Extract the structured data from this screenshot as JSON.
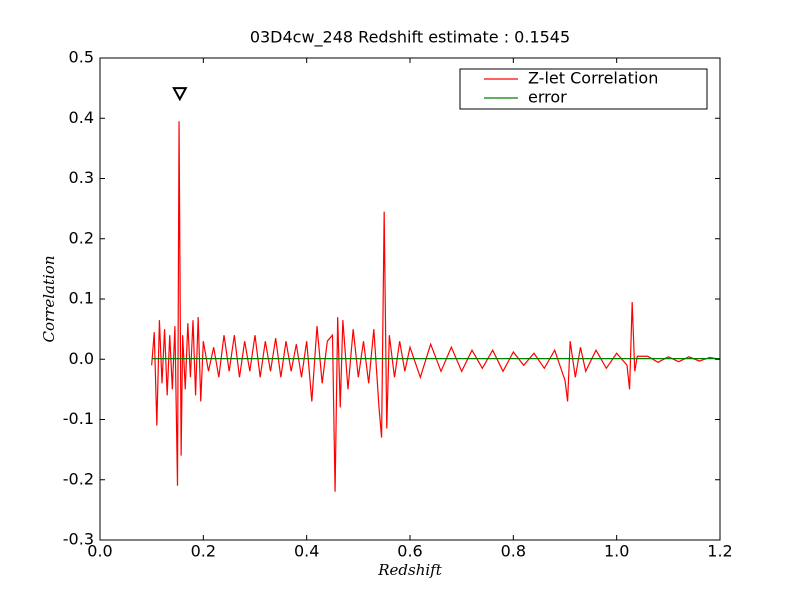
{
  "chart_data": {
    "type": "line",
    "title": "03D4cw_248 Redshift estimate : 0.1545",
    "xlabel": "Redshift",
    "ylabel": "Correlation",
    "xlim": [
      0,
      1.2
    ],
    "ylim": [
      -0.3,
      0.5
    ],
    "xticks": [
      {
        "value": 0,
        "label": "0.0"
      },
      0.2,
      0.4,
      0.6,
      0.8,
      {
        "value": 1,
        "label": "1.0"
      },
      1.2
    ],
    "yticks": [
      -0.3,
      -0.2,
      -0.1,
      {
        "value": 0,
        "label": "0.0"
      },
      0.1,
      0.2,
      0.3,
      0.4,
      0.5
    ],
    "legend": "upper right",
    "grid": false,
    "marker": {
      "x": 0.1545,
      "y": 0.44
    },
    "series": [
      {
        "name": "Z-let Correlation",
        "color": "#ff0000",
        "x": [
          0.1,
          0.105,
          0.11,
          0.115,
          0.12,
          0.125,
          0.13,
          0.135,
          0.14,
          0.145,
          0.15,
          0.153,
          0.157,
          0.16,
          0.165,
          0.17,
          0.175,
          0.18,
          0.185,
          0.19,
          0.195,
          0.2,
          0.21,
          0.22,
          0.23,
          0.24,
          0.25,
          0.26,
          0.27,
          0.28,
          0.29,
          0.3,
          0.31,
          0.32,
          0.33,
          0.34,
          0.35,
          0.36,
          0.37,
          0.38,
          0.39,
          0.4,
          0.41,
          0.42,
          0.43,
          0.44,
          0.45,
          0.455,
          0.46,
          0.465,
          0.47,
          0.48,
          0.49,
          0.5,
          0.51,
          0.52,
          0.53,
          0.54,
          0.545,
          0.55,
          0.555,
          0.56,
          0.57,
          0.58,
          0.59,
          0.6,
          0.62,
          0.64,
          0.66,
          0.68,
          0.7,
          0.72,
          0.74,
          0.76,
          0.78,
          0.8,
          0.82,
          0.84,
          0.86,
          0.88,
          0.9,
          0.905,
          0.91,
          0.92,
          0.93,
          0.94,
          0.96,
          0.98,
          1.0,
          1.02,
          1.025,
          1.03,
          1.035,
          1.04,
          1.06,
          1.08,
          1.1,
          1.12,
          1.14,
          1.16,
          1.18,
          1.2
        ],
        "values": [
          -0.01,
          0.045,
          -0.11,
          0.065,
          -0.04,
          0.05,
          -0.06,
          0.04,
          -0.05,
          0.055,
          -0.21,
          0.395,
          -0.16,
          0.04,
          -0.05,
          0.06,
          -0.03,
          0.065,
          -0.06,
          0.07,
          -0.07,
          0.03,
          -0.02,
          0.02,
          -0.03,
          0.04,
          -0.02,
          0.04,
          -0.03,
          0.03,
          -0.02,
          0.04,
          -0.03,
          0.03,
          -0.02,
          0.035,
          -0.03,
          0.03,
          -0.02,
          0.025,
          -0.03,
          0.03,
          -0.07,
          0.055,
          -0.04,
          0.03,
          0.04,
          -0.22,
          0.07,
          -0.08,
          0.065,
          -0.05,
          0.05,
          -0.03,
          0.03,
          -0.04,
          0.05,
          -0.08,
          -0.13,
          0.245,
          -0.115,
          0.04,
          -0.03,
          0.03,
          -0.02,
          0.02,
          -0.03,
          0.025,
          -0.02,
          0.02,
          -0.02,
          0.015,
          -0.015,
          0.015,
          -0.02,
          0.012,
          -0.01,
          0.01,
          -0.015,
          0.015,
          -0.035,
          -0.07,
          0.03,
          -0.03,
          0.02,
          -0.02,
          0.015,
          -0.015,
          0.01,
          -0.01,
          -0.05,
          0.095,
          -0.02,
          0.005,
          0.005,
          -0.005,
          0.004,
          -0.004,
          0.004,
          -0.003,
          0.003,
          0
        ]
      },
      {
        "name": "error",
        "color": "#008000",
        "x": [
          0.1,
          1.2
        ],
        "values": [
          0.001,
          0.001
        ]
      }
    ]
  }
}
